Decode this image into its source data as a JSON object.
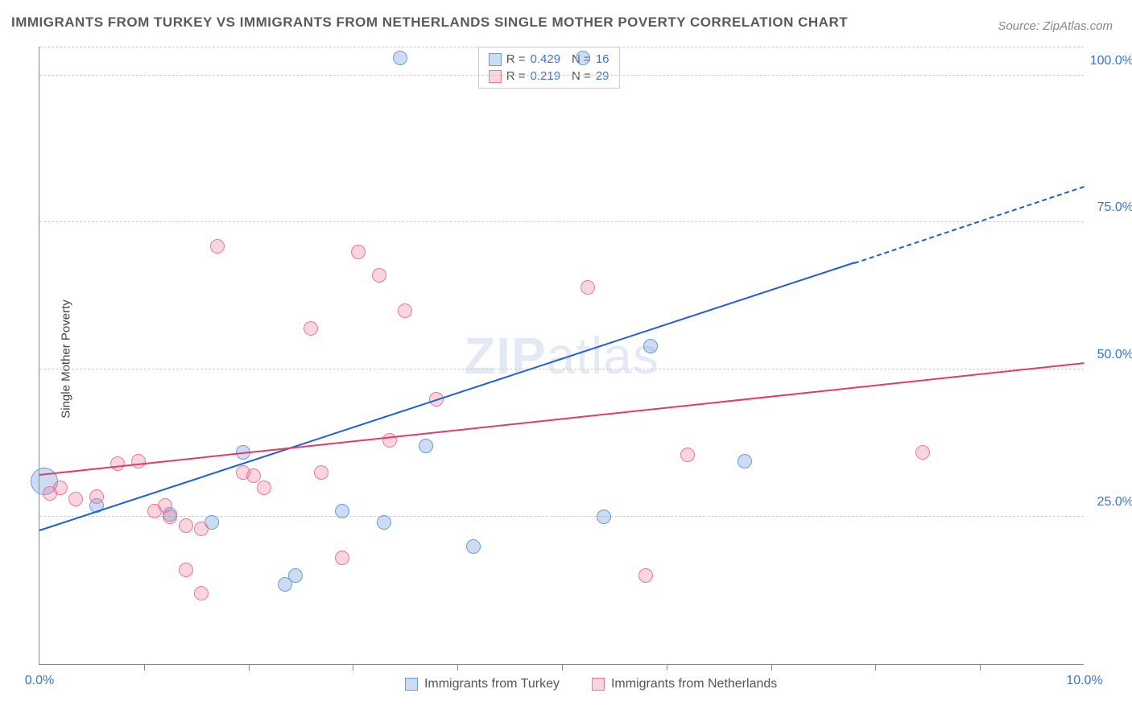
{
  "title": "IMMIGRANTS FROM TURKEY VS IMMIGRANTS FROM NETHERLANDS SINGLE MOTHER POVERTY CORRELATION CHART",
  "source": "Source: ZipAtlas.com",
  "ylabel": "Single Mother Poverty",
  "watermark_bold": "ZIP",
  "watermark_rest": "atlas",
  "chart": {
    "type": "scatter",
    "xlim": [
      0,
      10
    ],
    "ylim": [
      0,
      105
    ],
    "xtick_labels": [
      "0.0%",
      "10.0%"
    ],
    "xtick_positions": [
      0,
      10
    ],
    "xtick_minor_positions": [
      1,
      2,
      3,
      4,
      5,
      6,
      7,
      8,
      9
    ],
    "ytick_labels": [
      "25.0%",
      "50.0%",
      "75.0%",
      "100.0%"
    ],
    "ytick_positions": [
      25,
      50,
      75,
      100
    ],
    "grid_color": "#cccccc",
    "background_color": "#ffffff",
    "axis_color": "#888888",
    "series": [
      {
        "name": "Immigrants from Turkey",
        "fill_color": "rgba(106,156,220,0.35)",
        "stroke_color": "#6a9cdc",
        "trend_color": "#1f5fd1",
        "r_value": "0.429",
        "n_value": "16",
        "marker_radius": 9,
        "points": [
          {
            "x": 0.05,
            "y": 31,
            "r": 17
          },
          {
            "x": 0.55,
            "y": 27
          },
          {
            "x": 1.25,
            "y": 25.5
          },
          {
            "x": 1.65,
            "y": 24
          },
          {
            "x": 1.95,
            "y": 36
          },
          {
            "x": 2.35,
            "y": 13.5
          },
          {
            "x": 2.45,
            "y": 15
          },
          {
            "x": 2.9,
            "y": 26
          },
          {
            "x": 3.3,
            "y": 24
          },
          {
            "x": 3.45,
            "y": 103
          },
          {
            "x": 3.7,
            "y": 37
          },
          {
            "x": 4.15,
            "y": 20
          },
          {
            "x": 5.2,
            "y": 103
          },
          {
            "x": 5.85,
            "y": 54
          },
          {
            "x": 6.75,
            "y": 34.5
          },
          {
            "x": 5.4,
            "y": 25
          }
        ],
        "trend": {
          "x1": 0,
          "y1": 22.5,
          "x2": 7.8,
          "y2": 68,
          "dashed_to_x": 10,
          "dashed_to_y": 81
        }
      },
      {
        "name": "Immigrants from Netherlands",
        "fill_color": "rgba(235,120,150,0.30)",
        "stroke_color": "#eb7896",
        "trend_color": "#e23a6a",
        "r_value": "0.219",
        "n_value": "29",
        "marker_radius": 9,
        "points": [
          {
            "x": 0.1,
            "y": 29
          },
          {
            "x": 0.2,
            "y": 30
          },
          {
            "x": 0.35,
            "y": 28
          },
          {
            "x": 0.55,
            "y": 28.5
          },
          {
            "x": 0.75,
            "y": 34
          },
          {
            "x": 0.95,
            "y": 34.5
          },
          {
            "x": 1.1,
            "y": 26
          },
          {
            "x": 1.2,
            "y": 27
          },
          {
            "x": 1.25,
            "y": 25
          },
          {
            "x": 1.4,
            "y": 16
          },
          {
            "x": 1.55,
            "y": 12
          },
          {
            "x": 1.55,
            "y": 23
          },
          {
            "x": 1.7,
            "y": 71
          },
          {
            "x": 1.95,
            "y": 32.5
          },
          {
            "x": 2.05,
            "y": 32
          },
          {
            "x": 2.15,
            "y": 30
          },
          {
            "x": 2.6,
            "y": 57
          },
          {
            "x": 2.7,
            "y": 32.5
          },
          {
            "x": 2.9,
            "y": 18
          },
          {
            "x": 3.05,
            "y": 70
          },
          {
            "x": 3.25,
            "y": 66
          },
          {
            "x": 3.35,
            "y": 38
          },
          {
            "x": 3.5,
            "y": 60
          },
          {
            "x": 3.8,
            "y": 45
          },
          {
            "x": 5.25,
            "y": 64
          },
          {
            "x": 5.8,
            "y": 15
          },
          {
            "x": 6.2,
            "y": 35.5
          },
          {
            "x": 8.45,
            "y": 36
          },
          {
            "x": 1.4,
            "y": 23.5
          }
        ],
        "trend": {
          "x1": 0,
          "y1": 32,
          "x2": 10,
          "y2": 51
        }
      }
    ]
  },
  "legend": {
    "r_label": "R =",
    "n_label": "N ="
  }
}
